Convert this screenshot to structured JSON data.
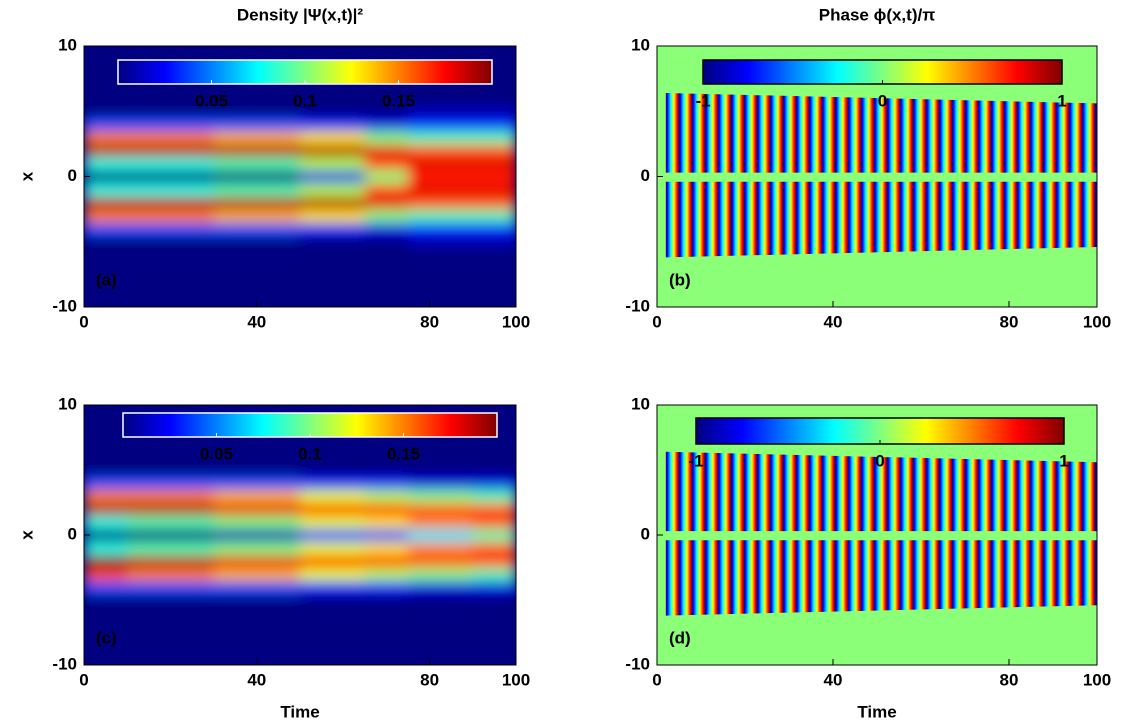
{
  "chart_data": [
    {
      "type": "heatmap",
      "title": "Density |Ψ(x,t)|²",
      "ylabel": "x",
      "panel_label": "(a)",
      "xlim": [
        0,
        100
      ],
      "ylim": [
        -10,
        10
      ],
      "xticks": [
        0,
        40,
        80,
        100
      ],
      "yticks": [
        -10,
        0,
        10
      ],
      "colormap": "jet",
      "clim": [
        0,
        0.2
      ],
      "colorbar_ticks": [
        0.05,
        0.1,
        0.15
      ],
      "colorbar_border": "#ffffff",
      "label_color": "#ffffff",
      "x": [
        0,
        20,
        40,
        60,
        70,
        80,
        100
      ],
      "y": [
        -5,
        -4,
        -3,
        -2,
        -1,
        0,
        1,
        2,
        3,
        4,
        5
      ],
      "z": [
        [
          0,
          0,
          0,
          0,
          0,
          0.01,
          0.01
        ],
        [
          0.04,
          0.04,
          0.04,
          0.03,
          0.02,
          0.03,
          0.03
        ],
        [
          0.15,
          0.15,
          0.14,
          0.13,
          0.1,
          0.09,
          0.09
        ],
        [
          0.19,
          0.19,
          0.19,
          0.19,
          0.18,
          0.16,
          0.16
        ],
        [
          0.08,
          0.08,
          0.09,
          0.11,
          0.16,
          0.18,
          0.18
        ],
        [
          0,
          0,
          0,
          0.02,
          0.1,
          0.17,
          0.17
        ],
        [
          0.08,
          0.08,
          0.09,
          0.11,
          0.16,
          0.18,
          0.18
        ],
        [
          0.19,
          0.19,
          0.19,
          0.19,
          0.18,
          0.16,
          0.16
        ],
        [
          0.15,
          0.15,
          0.14,
          0.13,
          0.1,
          0.09,
          0.09
        ],
        [
          0.04,
          0.04,
          0.04,
          0.03,
          0.02,
          0.03,
          0.03
        ],
        [
          0,
          0,
          0,
          0,
          0,
          0.01,
          0.01
        ]
      ]
    },
    {
      "type": "phase",
      "title": "Phase ϕ(x,t)/π",
      "panel_label": "(b)",
      "xlim": [
        0,
        100
      ],
      "ylim": [
        -10,
        10
      ],
      "xticks": [
        0,
        40,
        80,
        100
      ],
      "yticks": [
        -10,
        0,
        10
      ],
      "colormap": "jet",
      "clim": [
        -1,
        1
      ],
      "colorbar_ticks": [
        -1,
        0,
        1
      ],
      "colorbar_border": "#000000",
      "label_color": "#000000",
      "background": "#8cff78"
    },
    {
      "type": "heatmap",
      "xlabel": "Time",
      "ylabel": "x",
      "panel_label": "(c)",
      "xlim": [
        0,
        100
      ],
      "ylim": [
        -10,
        10
      ],
      "xticks": [
        0,
        40,
        80,
        100
      ],
      "yticks": [
        -10,
        0,
        10
      ],
      "colormap": "jet",
      "clim": [
        0,
        0.2
      ],
      "colorbar_ticks": [
        0.05,
        0.1,
        0.15
      ],
      "colorbar_border": "#ffffff",
      "label_color": "#ffffff",
      "x": [
        0,
        20,
        40,
        60,
        70,
        80,
        100
      ],
      "y": [
        -5,
        -4,
        -3,
        -2,
        -1,
        0,
        1,
        2,
        3,
        4,
        5
      ],
      "z": [
        [
          0,
          0,
          0,
          0,
          0,
          0,
          0
        ],
        [
          0.04,
          0.04,
          0.04,
          0.03,
          0.03,
          0.02,
          0.02
        ],
        [
          0.16,
          0.15,
          0.14,
          0.12,
          0.11,
          0.1,
          0.09
        ],
        [
          0.2,
          0.19,
          0.18,
          0.17,
          0.17,
          0.16,
          0.16
        ],
        [
          0.08,
          0.09,
          0.1,
          0.12,
          0.13,
          0.15,
          0.16
        ],
        [
          0,
          0,
          0.01,
          0.03,
          0.04,
          0.07,
          0.09
        ],
        [
          0.08,
          0.09,
          0.1,
          0.12,
          0.13,
          0.15,
          0.16
        ],
        [
          0.19,
          0.19,
          0.18,
          0.17,
          0.17,
          0.16,
          0.16
        ],
        [
          0.15,
          0.15,
          0.14,
          0.12,
          0.11,
          0.1,
          0.09
        ],
        [
          0.04,
          0.04,
          0.04,
          0.03,
          0.03,
          0.02,
          0.02
        ],
        [
          0,
          0,
          0,
          0,
          0,
          0,
          0
        ]
      ]
    },
    {
      "type": "phase",
      "xlabel": "Time",
      "panel_label": "(d)",
      "xlim": [
        0,
        100
      ],
      "ylim": [
        -10,
        10
      ],
      "xticks": [
        0,
        40,
        80,
        100
      ],
      "yticks": [
        -10,
        0,
        10
      ],
      "colormap": "jet",
      "clim": [
        -1,
        1
      ],
      "colorbar_ticks": [
        -1,
        0,
        1
      ],
      "colorbar_border": "#000000",
      "label_color": "#000000",
      "background": "#8cff78"
    }
  ]
}
